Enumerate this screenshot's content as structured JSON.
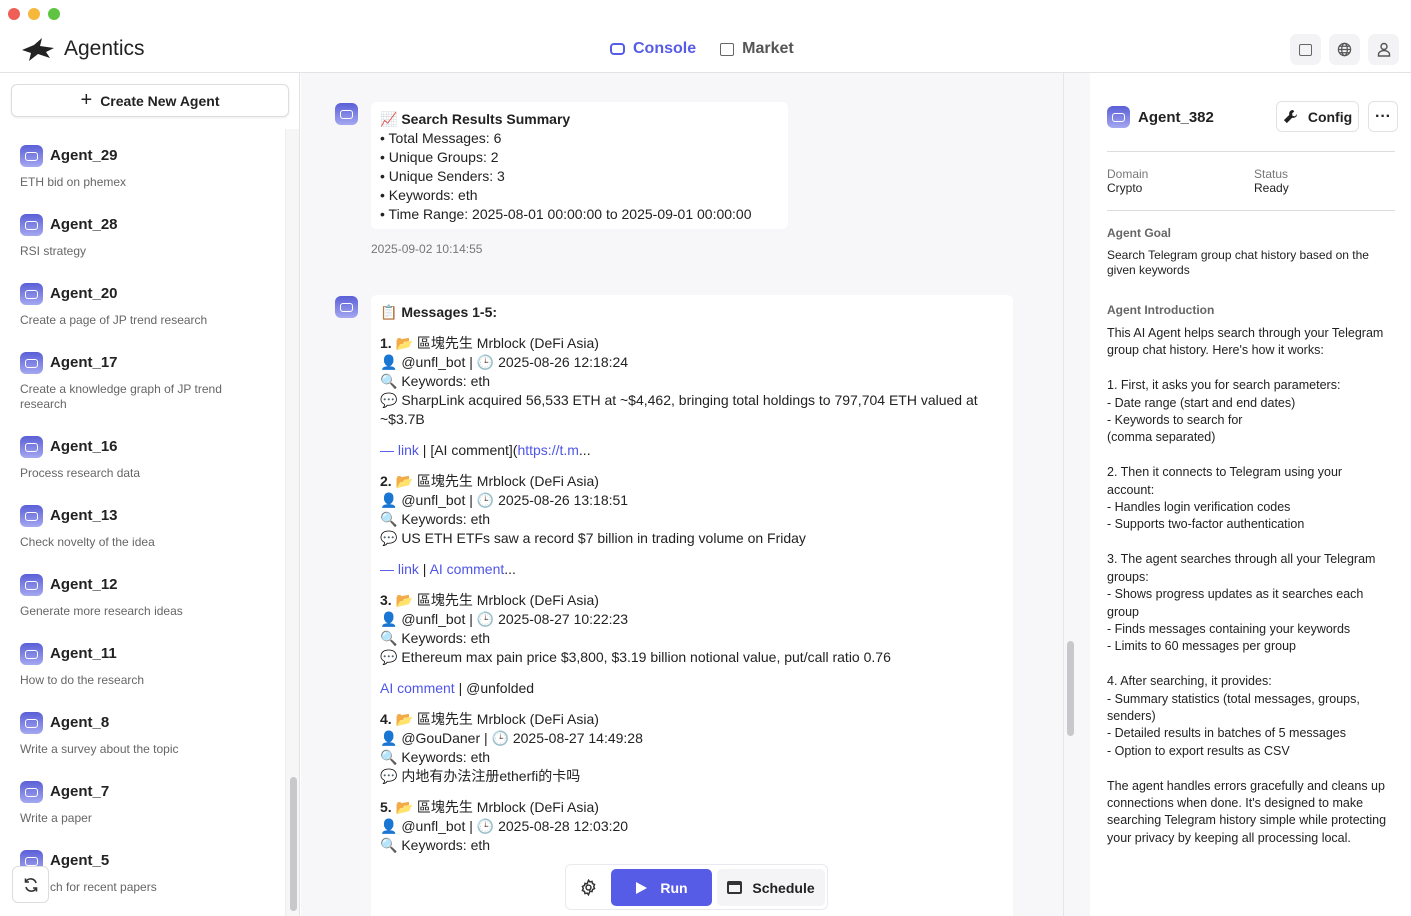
{
  "window": {
    "controls": [
      "close",
      "minimize",
      "maximize"
    ]
  },
  "header": {
    "app_name": "Agentics",
    "nav": [
      {
        "label": "Console",
        "active": true,
        "icon": "bot-icon"
      },
      {
        "label": "Market",
        "active": false,
        "icon": "store-icon"
      }
    ],
    "icons": [
      "wallet-icon",
      "globe-icon",
      "user-icon"
    ],
    "accent": "#575ce6"
  },
  "sidebar": {
    "create_label": "Create New Agent",
    "agents": [
      {
        "name": "Agent_29",
        "desc": "ETH bid on phemex"
      },
      {
        "name": "Agent_28",
        "desc": "RSI strategy"
      },
      {
        "name": "Agent_20",
        "desc": "Create a page of JP trend research"
      },
      {
        "name": "Agent_17",
        "desc": "Create a knowledge graph of JP trend research"
      },
      {
        "name": "Agent_16",
        "desc": "Process research data"
      },
      {
        "name": "Agent_13",
        "desc": "Check novelty of the idea"
      },
      {
        "name": "Agent_12",
        "desc": "Generate more research ideas"
      },
      {
        "name": "Agent_11",
        "desc": "How to do the research"
      },
      {
        "name": "Agent_8",
        "desc": "Write a survey about the topic"
      },
      {
        "name": "Agent_7",
        "desc": "Write a paper"
      },
      {
        "name": "Agent_5",
        "desc": "ch for recent papers"
      }
    ]
  },
  "chat": {
    "summary": {
      "title": "📈 Search Results Summary",
      "lines": [
        "• Total Messages: 6",
        "• Unique Groups: 2",
        "• Unique Senders: 3",
        "• Keywords: eth",
        "• Time Range: 2025-08-01 00:00:00 to 2025-09-01 00:00:00"
      ],
      "timestamp": "2025-09-02 10:14:55"
    },
    "messages_title": "📋 Messages 1-5:",
    "messages": [
      {
        "num": "1.",
        "group": "📂 區塊先生 Mrblock (DeFi Asia)",
        "sender": "👤 @unfl_bot | 🕒 2025-08-26 12:18:24",
        "keywords": "🔍 Keywords: eth",
        "text": "💬 SharpLink acquired 56,533 ETH at ~$4,462, bringing total holdings to 797,704 ETH valued at ~$3.7B",
        "link_a": "— link",
        "sep": " | [AI comment](",
        "link_b": "https://t.m",
        "tail": "..."
      },
      {
        "num": "2.",
        "group": "📂 區塊先生 Mrblock (DeFi Asia)",
        "sender": "👤 @unfl_bot | 🕒 2025-08-26 13:18:51",
        "keywords": "🔍 Keywords: eth",
        "text": "💬 US ETH ETFs saw a record $7 billion in trading volume on Friday",
        "link_a": "— link",
        "sep": " | ",
        "link_b": "AI comment",
        "tail": "..."
      },
      {
        "num": "3.",
        "group": "📂 區塊先生 Mrblock (DeFi Asia)",
        "sender": "👤 @unfl_bot | 🕒 2025-08-27 10:22:23",
        "keywords": "🔍 Keywords: eth",
        "text": "💬 Ethereum max pain price $3,800, $3.19 billion notional value, put/call ratio 0.76",
        "link_a": "AI comment",
        "sep": " | @unfolded",
        "link_b": "",
        "tail": ""
      },
      {
        "num": "4.",
        "group": "📂 區塊先生 Mrblock (DeFi Asia)",
        "sender": "👤 @GouDaner | 🕒 2025-08-27 14:49:28",
        "keywords": "🔍 Keywords: eth",
        "text": "💬 内地有办法注册etherfi的卡吗"
      },
      {
        "num": "5.",
        "group": "📂 區塊先生 Mrblock (DeFi Asia)",
        "sender": "👤 @unfl_bot | 🕒 2025-08-28 12:03:20",
        "keywords": "🔍 Keywords: eth"
      }
    ]
  },
  "toolbar": {
    "run_label": "Run",
    "schedule_label": "Schedule"
  },
  "agent_panel": {
    "name": "Agent_382",
    "config_label": "Config",
    "more_label": "···",
    "domain_label": "Domain",
    "domain": "Crypto",
    "status_label": "Status",
    "status": "Ready",
    "goal_title": "Agent Goal",
    "goal": "Search Telegram group chat history based on the given keywords",
    "intro_title": "Agent Introduction",
    "intro": "This AI Agent helps search through your Telegram group chat history. Here's how it works:\n\n1. First, it asks you for search parameters:\n   - Date range (start and end dates)\n   - Keywords to search for\n(comma separated)\n\n2. Then it connects to Telegram using your account:\n   - Handles login verification codes\n   - Supports two-factor authentication\n\n3. The agent searches through all your Telegram groups:\n   - Shows progress updates as it searches each group\n   - Finds messages containing your keywords\n   - Limits to 60 messages per group\n\n4. After searching, it provides:\n   - Summary statistics (total messages, groups, senders)\n   - Detailed results in batches of 5 messages\n   - Option to export results as CSV\n\nThe agent handles errors gracefully and cleans up connections when done. It's designed to make searching Telegram history simple while protecting your privacy by keeping all processing local."
  }
}
